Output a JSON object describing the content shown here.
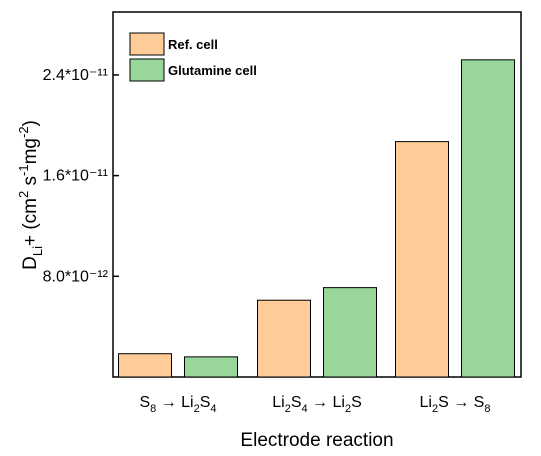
{
  "chart_data": {
    "type": "bar",
    "title": "",
    "categories": [
      "S₈ → Li₂S₄",
      "Li₂S₄ → Li₂S",
      "Li₂S → S₈"
    ],
    "series": [
      {
        "name": "Ref. cell",
        "color": "#FFCC99",
        "values": [
          1.85e-12,
          6.1e-12,
          1.87e-11
        ]
      },
      {
        "name": "Glutamine cell",
        "color": "#99D699",
        "values": [
          1.6e-12,
          7.1e-12,
          2.52e-11
        ]
      }
    ],
    "xlabel": "Electrode reaction",
    "ylabel": "DLi+ (cm² s⁻¹mg⁻²)",
    "ylim": [
      0,
      2.9e-11
    ],
    "yticks": [
      8e-12,
      1.6e-11,
      2.4e-11
    ],
    "ytick_labels": [
      "8.0*10⁻¹²",
      "1.6*10⁻¹¹",
      "2.4*10⁻¹¹"
    ],
    "legend_position": "top-left",
    "grid": false
  }
}
